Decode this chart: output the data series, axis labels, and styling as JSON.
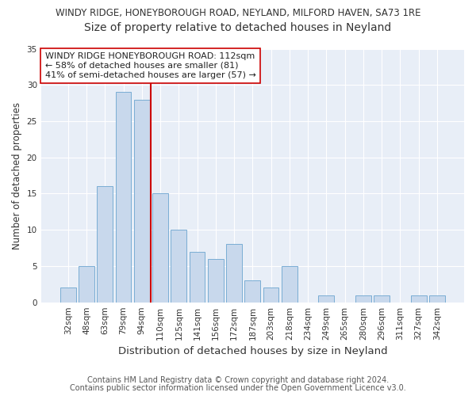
{
  "title": "WINDY RIDGE, HONEYBOROUGH ROAD, NEYLAND, MILFORD HAVEN, SA73 1RE",
  "subtitle": "Size of property relative to detached houses in Neyland",
  "xlabel": "Distribution of detached houses by size in Neyland",
  "ylabel": "Number of detached properties",
  "categories": [
    "32sqm",
    "48sqm",
    "63sqm",
    "79sqm",
    "94sqm",
    "110sqm",
    "125sqm",
    "141sqm",
    "156sqm",
    "172sqm",
    "187sqm",
    "203sqm",
    "218sqm",
    "234sqm",
    "249sqm",
    "265sqm",
    "280sqm",
    "296sqm",
    "311sqm",
    "327sqm",
    "342sqm"
  ],
  "values": [
    2,
    5,
    16,
    29,
    28,
    15,
    10,
    7,
    6,
    8,
    3,
    2,
    5,
    0,
    1,
    0,
    1,
    1,
    0,
    1,
    1
  ],
  "bar_color": "#c8d8ec",
  "bar_edge_color": "#7aadd4",
  "vline_color": "#cc0000",
  "vline_pos": 4.5,
  "annotation_text": "WINDY RIDGE HONEYBOROUGH ROAD: 112sqm\n← 58% of detached houses are smaller (81)\n41% of semi-detached houses are larger (57) →",
  "annotation_box_color": "white",
  "annotation_box_edge_color": "#cc0000",
  "ylim": [
    0,
    35
  ],
  "yticks": [
    0,
    5,
    10,
    15,
    20,
    25,
    30,
    35
  ],
  "footer1": "Contains HM Land Registry data © Crown copyright and database right 2024.",
  "footer2": "Contains public sector information licensed under the Open Government Licence v3.0.",
  "bg_color": "#ffffff",
  "plot_bg_color": "#e8eef7",
  "title_fontsize": 8.5,
  "subtitle_fontsize": 10,
  "xlabel_fontsize": 9.5,
  "ylabel_fontsize": 8.5,
  "tick_fontsize": 7.5,
  "annotation_fontsize": 8,
  "footer_fontsize": 7
}
